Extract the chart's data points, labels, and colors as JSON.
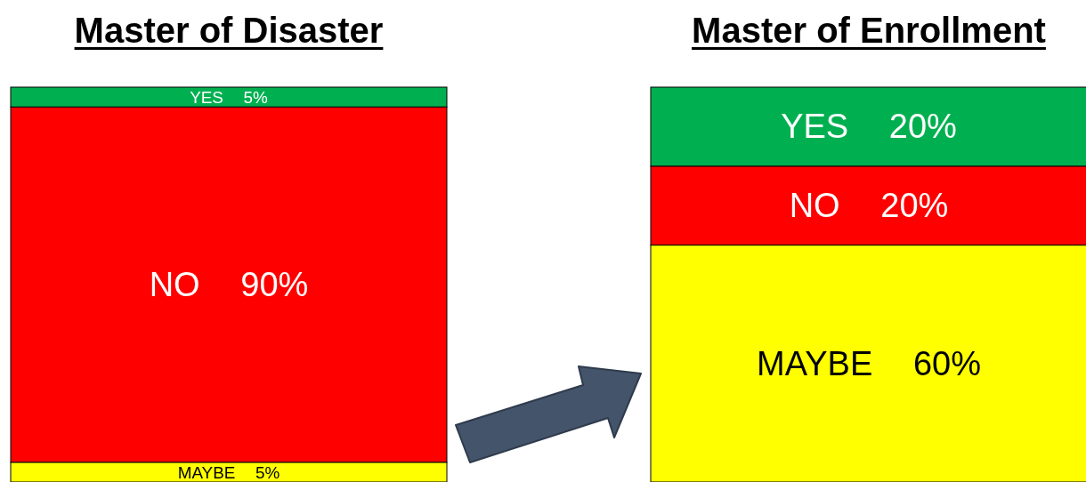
{
  "chart_data": [
    {
      "type": "bar",
      "title": "Master of Disaster",
      "categories": [
        null
      ],
      "stacked": true,
      "series": [
        {
          "name": "MAYBE",
          "color": "#ffff00",
          "values": [
            5
          ],
          "value_labels": [
            "5%"
          ]
        },
        {
          "name": "NO",
          "color": "#ff0000",
          "values": [
            90
          ],
          "value_labels": [
            "90%"
          ]
        },
        {
          "name": "YES",
          "color": "#00b050",
          "values": [
            5
          ],
          "value_labels": [
            "5%"
          ]
        }
      ]
    },
    {
      "type": "bar",
      "title": "Master of Enrollment",
      "categories": [
        null
      ],
      "stacked": true,
      "series": [
        {
          "name": "MAYBE",
          "color": "#ffff00",
          "values": [
            60
          ],
          "value_labels": [
            "60%"
          ]
        },
        {
          "name": "NO",
          "color": "#ff0000",
          "values": [
            20
          ],
          "value_labels": [
            "20%"
          ]
        },
        {
          "name": "YES",
          "color": "#00b050",
          "values": [
            20
          ],
          "value_labels": [
            "20%"
          ]
        }
      ]
    }
  ]
}
